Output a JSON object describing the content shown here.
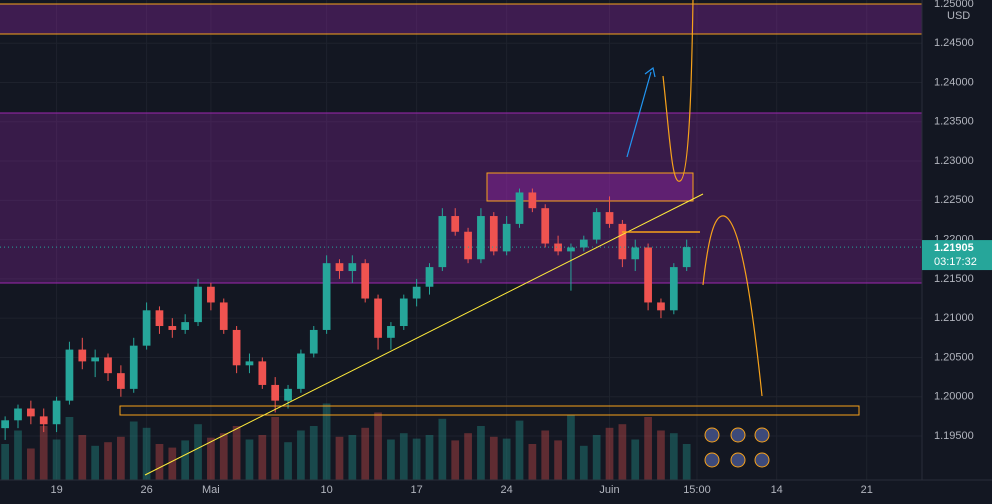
{
  "chart_data": {
    "type": "candlestick",
    "currency": "USD",
    "x": [
      -4,
      -3,
      -2,
      -1,
      0,
      1,
      2,
      3,
      4,
      5,
      6,
      7,
      8,
      9,
      10,
      11,
      12,
      13,
      14,
      15,
      16,
      17,
      18,
      19,
      20,
      21,
      22,
      23,
      24,
      25,
      26,
      27,
      28,
      29,
      30,
      31,
      32,
      33,
      34,
      35,
      36,
      37,
      38,
      39,
      40,
      41,
      42,
      43,
      44,
      45,
      46,
      47,
      48,
      49
    ],
    "open": [
      1.196,
      1.197,
      1.1985,
      1.1975,
      1.1965,
      1.1995,
      1.206,
      1.2045,
      1.205,
      1.203,
      1.201,
      1.2065,
      1.211,
      1.209,
      1.2085,
      1.2095,
      1.214,
      1.212,
      1.2085,
      1.204,
      1.2045,
      1.2015,
      1.1995,
      1.201,
      1.2055,
      1.2085,
      1.217,
      1.216,
      1.217,
      1.2125,
      1.2075,
      1.209,
      1.2125,
      1.214,
      1.2165,
      1.223,
      1.221,
      1.2175,
      1.223,
      1.2185,
      1.222,
      1.226,
      1.224,
      1.2195,
      1.2185,
      1.219,
      1.22,
      1.2235,
      1.222,
      1.2175,
      1.219,
      1.212,
      1.211,
      1.2165
    ],
    "high": [
      1.1975,
      1.199,
      1.1995,
      1.1985,
      1.2,
      1.207,
      1.2075,
      1.206,
      1.2055,
      1.204,
      1.2075,
      1.212,
      1.2115,
      1.21,
      1.2105,
      1.215,
      1.2145,
      1.2125,
      1.209,
      1.2055,
      1.205,
      1.2025,
      1.2015,
      1.206,
      1.209,
      1.218,
      1.2175,
      1.218,
      1.2175,
      1.213,
      1.2095,
      1.213,
      1.215,
      1.217,
      1.224,
      1.224,
      1.2215,
      1.224,
      1.2235,
      1.223,
      1.2265,
      1.2265,
      1.2245,
      1.2205,
      1.2195,
      1.2205,
      1.224,
      1.2255,
      1.2225,
      1.22,
      1.2195,
      1.2125,
      1.217,
      1.22
    ],
    "low": [
      1.1945,
      1.196,
      1.1965,
      1.1955,
      1.1955,
      1.199,
      1.2035,
      1.2025,
      1.202,
      1.2,
      1.2005,
      1.206,
      1.208,
      1.2075,
      1.208,
      1.209,
      1.211,
      1.208,
      1.203,
      1.203,
      1.201,
      1.198,
      1.1985,
      1.2005,
      1.205,
      1.208,
      1.215,
      1.2145,
      1.212,
      1.206,
      1.206,
      1.2085,
      1.2115,
      1.213,
      1.216,
      1.2205,
      1.217,
      1.217,
      1.218,
      1.218,
      1.2215,
      1.2235,
      1.219,
      1.218,
      1.2135,
      1.2185,
      1.2195,
      1.2215,
      1.2165,
      1.216,
      1.211,
      1.21,
      1.2105,
      1.216
    ],
    "close": [
      1.197,
      1.1985,
      1.1975,
      1.1965,
      1.1995,
      1.206,
      1.2045,
      1.205,
      1.203,
      1.201,
      1.2065,
      1.211,
      1.209,
      1.2085,
      1.2095,
      1.214,
      1.212,
      1.2085,
      1.204,
      1.2045,
      1.2015,
      1.1995,
      1.201,
      1.2055,
      1.2085,
      1.217,
      1.216,
      1.217,
      1.2125,
      1.2075,
      1.209,
      1.2125,
      1.214,
      1.2165,
      1.223,
      1.221,
      1.2175,
      1.223,
      1.2185,
      1.222,
      1.226,
      1.224,
      1.2195,
      1.2185,
      1.219,
      1.22,
      1.2235,
      1.222,
      1.2175,
      1.219,
      1.212,
      1.211,
      1.2165,
      1.21905
    ],
    "volume": [
      40,
      55,
      35,
      60,
      45,
      70,
      50,
      38,
      42,
      48,
      65,
      58,
      40,
      36,
      44,
      62,
      47,
      52,
      60,
      45,
      50,
      70,
      42,
      55,
      60,
      85,
      48,
      50,
      58,
      75,
      45,
      52,
      46,
      50,
      68,
      44,
      52,
      60,
      48,
      46,
      66,
      40,
      55,
      44,
      72,
      38,
      50,
      58,
      62,
      45,
      70,
      55,
      52,
      40
    ],
    "volume_lim": [
      0,
      100
    ],
    "colors": {
      "up": "#26a69a",
      "down": "#ef5350"
    },
    "xlim": [
      -4.4,
      67.3
    ],
    "ylim": [
      1.1894,
      1.2505
    ],
    "xticks": [
      {
        "value": 0,
        "label": "19"
      },
      {
        "value": 7,
        "label": "26"
      },
      {
        "value": 12,
        "label": "Mai"
      },
      {
        "value": 21,
        "label": "10"
      },
      {
        "value": 28,
        "label": "17"
      },
      {
        "value": 35,
        "label": "24"
      },
      {
        "value": 43,
        "label": "Juin"
      },
      {
        "value": 49.8,
        "label": "15:00"
      },
      {
        "value": 56,
        "label": "14"
      },
      {
        "value": 63,
        "label": "21"
      }
    ],
    "yticks": [
      {
        "value": 1.195,
        "label": "1.19500"
      },
      {
        "value": 1.2,
        "label": "1.20000"
      },
      {
        "value": 1.205,
        "label": "1.20500"
      },
      {
        "value": 1.21,
        "label": "1.21000"
      },
      {
        "value": 1.215,
        "label": "1.21500"
      },
      {
        "value": 1.22,
        "label": "1.22000"
      },
      {
        "value": 1.225,
        "label": "1.22500"
      },
      {
        "value": 1.23,
        "label": "1.23000"
      },
      {
        "value": 1.235,
        "label": "1.23500"
      },
      {
        "value": 1.24,
        "label": "1.24000"
      },
      {
        "value": 1.245,
        "label": "1.24500"
      },
      {
        "value": 1.25,
        "label": "1.25000"
      }
    ],
    "last_price": {
      "value": 1.21905,
      "label": "1.21905"
    },
    "countdown": "03:17:32"
  }
}
